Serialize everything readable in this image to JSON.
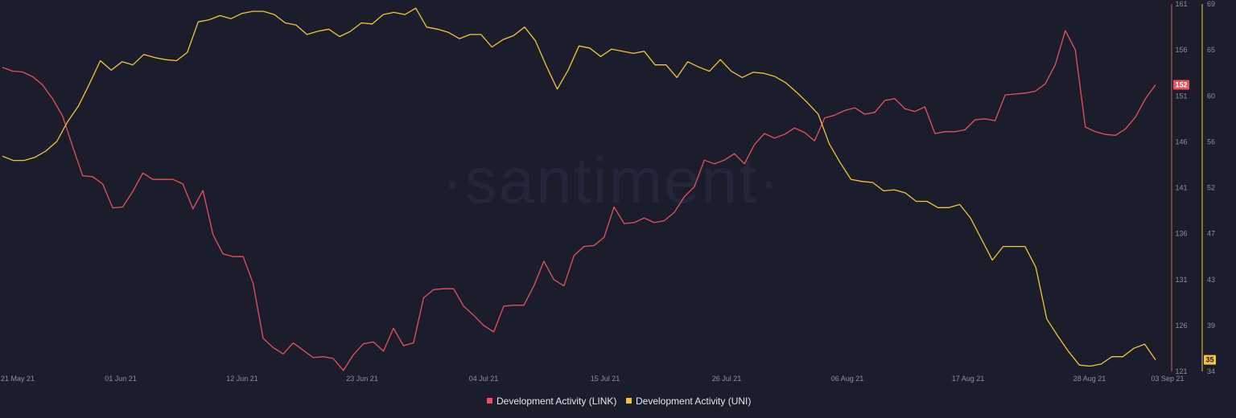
{
  "watermark": "·santiment·",
  "chart_data": {
    "type": "line",
    "x_tick_labels": [
      "21 May 21",
      "01 Jun 21",
      "12 Jun 21",
      "23 Jun 21",
      "04 Jul 21",
      "15 Jul 21",
      "26 Jul 21",
      "06 Aug 21",
      "17 Aug 21",
      "28 Aug 21",
      "03 Sep 21"
    ],
    "y_axes": [
      {
        "id": "link",
        "color": "#e6525a",
        "ticks": [
          "161",
          "156",
          "151",
          "146",
          "141",
          "136",
          "131",
          "126",
          "121"
        ],
        "range": [
          121,
          161
        ]
      },
      {
        "id": "uni",
        "color": "#f2c43a",
        "ticks": [
          "69",
          "65",
          "60",
          "56",
          "52",
          "47",
          "43",
          "39",
          "34"
        ],
        "range": [
          34,
          69
        ]
      }
    ],
    "legend_position": "bottom-center",
    "grid": false,
    "series": [
      {
        "name": "Development Activity (LINK)",
        "color": "#e6525a",
        "axis": "link",
        "current_value_badge": "152",
        "values": [
          154.1,
          153.7,
          153.6,
          153.1,
          152.2,
          150.7,
          148.8,
          145.5,
          142.3,
          142.2,
          141.4,
          138.8,
          138.9,
          140.6,
          142.6,
          141.9,
          141.9,
          141.9,
          141.4,
          138.7,
          140.7,
          135.9,
          133.8,
          133.5,
          133.5,
          130.6,
          124.6,
          123.6,
          122.9,
          124.1,
          123.3,
          122.5,
          122.6,
          122.4,
          121.1,
          122.8,
          124.0,
          124.2,
          123.2,
          125.7,
          123.8,
          124.1,
          129.0,
          129.9,
          130.0,
          130.0,
          128.1,
          127.1,
          126.0,
          125.3,
          128.1,
          128.2,
          128.2,
          130.3,
          133.0,
          131.0,
          130.3,
          133.6,
          134.6,
          134.7,
          135.6,
          138.9,
          137.1,
          137.2,
          137.7,
          137.2,
          137.4,
          138.3,
          140.0,
          141.1,
          144.0,
          143.6,
          144.0,
          144.7,
          143.6,
          145.7,
          146.9,
          146.4,
          146.8,
          147.5,
          147.0,
          146.1,
          148.6,
          148.9,
          149.4,
          149.7,
          149.0,
          149.2,
          150.5,
          150.7,
          149.6,
          149.3,
          149.8,
          146.9,
          147.1,
          147.1,
          147.3,
          148.4,
          148.5,
          148.3,
          151.1,
          151.2,
          151.3,
          151.5,
          152.3,
          154.4,
          158.1,
          156.0,
          147.6,
          147.1,
          146.8,
          146.7,
          147.4,
          148.7,
          150.7,
          152.2
        ]
      },
      {
        "name": "Development Activity (UNI)",
        "color": "#f2c43a",
        "axis": "uni",
        "current_value_badge": "35",
        "values": [
          54.5,
          54.1,
          54.1,
          54.4,
          55.0,
          55.9,
          57.8,
          59.3,
          61.4,
          63.6,
          62.7,
          63.5,
          63.2,
          64.2,
          63.9,
          63.7,
          63.6,
          64.4,
          67.3,
          67.5,
          67.9,
          67.6,
          68.1,
          68.3,
          68.3,
          68.0,
          67.2,
          67.0,
          66.1,
          66.4,
          66.6,
          65.9,
          66.4,
          67.2,
          67.1,
          68.0,
          68.2,
          68.0,
          68.6,
          66.8,
          66.6,
          66.3,
          65.7,
          66.1,
          66.1,
          64.9,
          65.6,
          66.0,
          66.8,
          65.5,
          63.1,
          60.9,
          62.7,
          65.0,
          64.8,
          64.0,
          64.7,
          64.5,
          64.3,
          64.5,
          63.2,
          63.2,
          62.0,
          63.5,
          63.0,
          62.6,
          63.7,
          62.6,
          62.0,
          62.5,
          62.4,
          62.1,
          61.5,
          60.6,
          59.6,
          58.5,
          55.7,
          53.9,
          52.3,
          52.1,
          52.0,
          51.2,
          51.3,
          51.0,
          50.2,
          50.2,
          49.6,
          49.6,
          49.9,
          48.6,
          46.6,
          44.6,
          45.9,
          45.9,
          45.9,
          43.9,
          39.0,
          37.4,
          35.9,
          34.6,
          34.5,
          34.7,
          35.4,
          35.4,
          36.2,
          36.6,
          35.1
        ]
      }
    ]
  }
}
